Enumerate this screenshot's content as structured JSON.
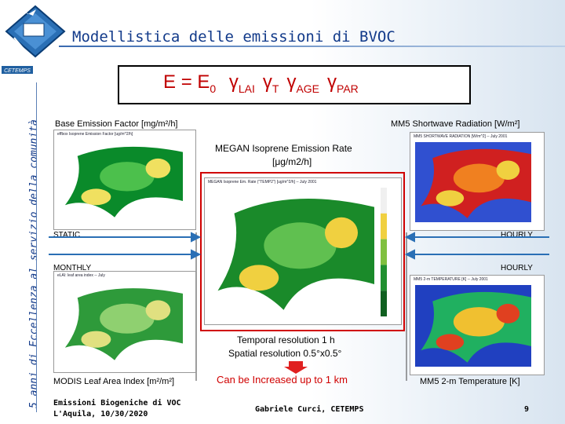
{
  "header": {
    "title": "Modellistica delle emissioni di BVOC",
    "logo_text": "CETEMPS",
    "side_text": "5 anni di Eccellenza al servizio della comunità"
  },
  "formula": {
    "lhs": "E",
    "equals": "=",
    "base": "E",
    "base_sub": "0",
    "gamma": "γ",
    "subs": [
      "LAI",
      "T",
      "AGE",
      "PAR"
    ]
  },
  "panels": {
    "base_emission": {
      "label": "Base Emission Factor [mg/m²/h]",
      "tag": "STATIC",
      "map_title": "effbox Isoprene Emission Factor [ug/m^2/h]"
    },
    "lai": {
      "label": "MODIS Leaf Area Index [m²/m²]",
      "tag": "MONTHLY",
      "map_title": "eLAI: leaf area index -- July"
    },
    "megan": {
      "label": [
        "MEGAN Isoprene Emission Rate",
        "[μg/m2/h]"
      ],
      "map_title": "MEGAN Isoprene Em. Rate (\"TEMP2\") [ug/m^2/h] -- July 2001"
    },
    "radiation": {
      "label": "MM5 Shortwave Radiation [W/m²]",
      "tag": "HOURLY",
      "map_title": "MM5 SHORTWAVE RADIATION [W/m^2] -- July 2001"
    },
    "temperature": {
      "label": "MM5 2-m Temperature [K]",
      "tag": "HOURLY",
      "map_title": "MM5 2-m TEMPERATURE [K] -- July 2001"
    }
  },
  "resolution": {
    "temporal": "Temporal resolution 1 h",
    "spatial": "Spatial resolution 0.5°x0.5°",
    "note": "Can be Increased up to 1 km"
  },
  "footer": {
    "left": [
      "Emissioni Biogeniche di VOC",
      "L'Aquila, 10/30/2020"
    ],
    "center": "Gabriele Curci, CETEMPS",
    "page": "9"
  }
}
